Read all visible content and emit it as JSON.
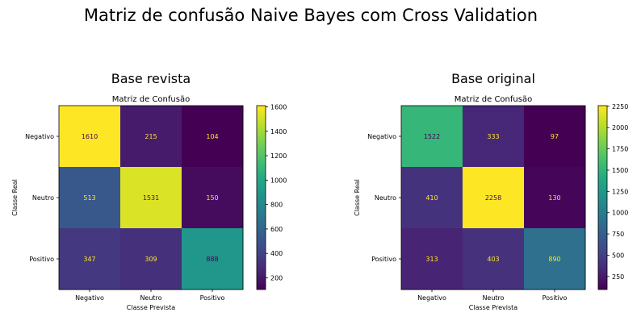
{
  "figure": {
    "title": "Matriz de confusão Naive Bayes com Cross Validation"
  },
  "chart_data": [
    {
      "type": "heatmap",
      "panel_title": "Base revista",
      "title": "Matriz de Confusão",
      "xlabel": "Classe Prevista",
      "ylabel": "Classe Real",
      "categories": [
        "Negativo",
        "Neutro",
        "Positivo"
      ],
      "matrix": [
        [
          1610,
          215,
          104
        ],
        [
          513,
          1531,
          150
        ],
        [
          347,
          309,
          888
        ]
      ],
      "colormap": "viridis",
      "vmin": 104,
      "vmax": 1610,
      "colorbar_ticks": [
        200,
        400,
        600,
        800,
        1000,
        1200,
        1400,
        1600
      ]
    },
    {
      "type": "heatmap",
      "panel_title": "Base original",
      "title": "Matriz de Confusão",
      "xlabel": "Classe Prevista",
      "ylabel": "Classe Real",
      "categories": [
        "Negativo",
        "Neutro",
        "Positivo"
      ],
      "matrix": [
        [
          1522,
          333,
          97
        ],
        [
          410,
          2258,
          130
        ],
        [
          313,
          403,
          890
        ]
      ],
      "colormap": "viridis",
      "vmin": 97,
      "vmax": 2258,
      "colorbar_ticks": [
        250,
        500,
        750,
        1000,
        1250,
        1500,
        1750,
        2000,
        2250
      ]
    }
  ]
}
